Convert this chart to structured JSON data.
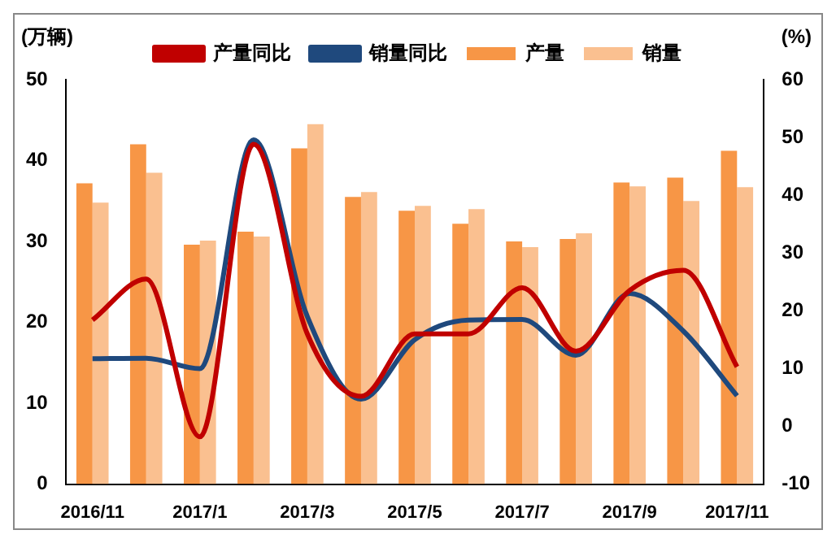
{
  "chart_data": {
    "type": "bar",
    "ylabel": "(万辆)",
    "y2label": "(%)",
    "categories": [
      "2016/11",
      null,
      "2017/1",
      null,
      "2017/3",
      null,
      "2017/5",
      null,
      "2017/7",
      null,
      "2017/9",
      null,
      "2017/11"
    ],
    "series": [
      {
        "name": "产量",
        "color": "#f79646",
        "values": [
          37.2,
          42,
          29.6,
          31.2,
          41.5,
          35.5,
          33.8,
          32.2,
          30,
          30.3,
          37.3,
          37.9,
          41.2
        ]
      },
      {
        "name": "销量",
        "color": "#fac090",
        "values": [
          34.8,
          38.5,
          30.1,
          30.6,
          44.5,
          36.1,
          34.4,
          34,
          29.3,
          31,
          36.8,
          35,
          36.7
        ]
      },
      {
        "name": "产量同比",
        "type": "line",
        "axis": "y2",
        "color": "#c00000",
        "values": [
          18.4,
          25.5,
          -1.8,
          48.8,
          16,
          5.2,
          16,
          16,
          24,
          13,
          23.5,
          27,
          10.3
        ]
      },
      {
        "name": "销量同比",
        "type": "line",
        "axis": "y2",
        "color": "#1f497d",
        "values": [
          11.7,
          11.8,
          10,
          49.6,
          19,
          4.7,
          15,
          18.4,
          18.5,
          12.3,
          23,
          16.5,
          5.3
        ]
      }
    ],
    "ylim": [
      0,
      50
    ],
    "yticks": [
      0,
      10,
      20,
      30,
      40,
      50
    ],
    "y2lim": [
      -10,
      60
    ],
    "y2ticks": [
      -10,
      0,
      10,
      20,
      30,
      40,
      50,
      60
    ],
    "grid": false,
    "legend": "top",
    "marker": "none"
  }
}
